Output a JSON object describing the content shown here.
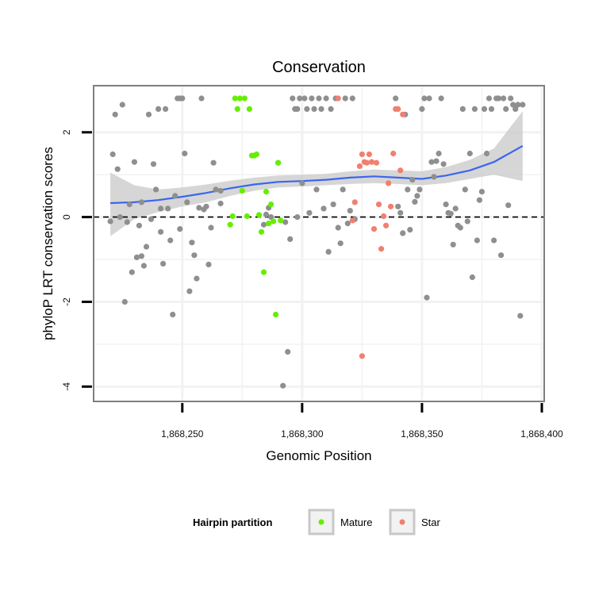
{
  "chart_data": {
    "type": "scatter",
    "title": "Conservation",
    "xlabel": "Genomic Position",
    "ylabel": "phyloP LRT conservation scores",
    "xlim": [
      1868213,
      1868401
    ],
    "ylim": [
      -4.35,
      3.1
    ],
    "x_ticks": [
      1868250,
      1868300,
      1868350,
      1868400
    ],
    "x_tick_labels": [
      "1,868,250",
      "1,868,300",
      "1,868,350",
      "1,868,400"
    ],
    "y_ticks": [
      -4,
      -2,
      0,
      2
    ],
    "y_tick_labels": [
      "-4",
      "-2",
      "0",
      "2"
    ],
    "reference_line": {
      "y": 0,
      "style": "dashed"
    },
    "grid": true,
    "colors": {
      "other": "#8f8f8f",
      "Mature": "#66ee00",
      "Star": "#f0806f",
      "smooth_line": "#3a66ee",
      "ribbon": "#c8c8c8",
      "panel_border": "#7f7f7f",
      "grid": "#f2f2f2"
    },
    "legend": {
      "title": "Hairpin partition",
      "placement": "bottom",
      "entries": [
        {
          "name": "Mature",
          "color": "#66ee00"
        },
        {
          "name": "Star",
          "color": "#f0806f"
        }
      ]
    },
    "series": [
      {
        "name": "other",
        "points": [
          [
            1868220,
            -0.1
          ],
          [
            1868221,
            1.48
          ],
          [
            1868222,
            2.42
          ],
          [
            1868223,
            1.13
          ],
          [
            1868224,
            0.0
          ],
          [
            1868225,
            2.65
          ],
          [
            1868226,
            -2.0
          ],
          [
            1868227,
            -0.12
          ],
          [
            1868228,
            0.3
          ],
          [
            1868229,
            -1.3
          ],
          [
            1868230,
            1.3
          ],
          [
            1868231,
            -0.95
          ],
          [
            1868232,
            -0.2
          ],
          [
            1868233,
            -0.92
          ],
          [
            1868233,
            0.35
          ],
          [
            1868234,
            -1.15
          ],
          [
            1868235,
            -0.7
          ],
          [
            1868236,
            2.42
          ],
          [
            1868237,
            -0.05
          ],
          [
            1868238,
            1.25
          ],
          [
            1868239,
            0.65
          ],
          [
            1868240,
            2.55
          ],
          [
            1868241,
            0.2
          ],
          [
            1868241,
            -0.35
          ],
          [
            1868242,
            -1.1
          ],
          [
            1868243,
            2.55
          ],
          [
            1868244,
            0.2
          ],
          [
            1868245,
            -0.55
          ],
          [
            1868246,
            -2.3
          ],
          [
            1868247,
            0.5
          ],
          [
            1868248,
            2.8
          ],
          [
            1868249,
            2.8
          ],
          [
            1868249,
            -0.28
          ],
          [
            1868250,
            2.8
          ],
          [
            1868251,
            1.5
          ],
          [
            1868252,
            0.35
          ],
          [
            1868253,
            -1.75
          ],
          [
            1868254,
            -0.6
          ],
          [
            1868255,
            -0.9
          ],
          [
            1868256,
            -1.45
          ],
          [
            1868257,
            0.22
          ],
          [
            1868258,
            2.8
          ],
          [
            1868259,
            0.18
          ],
          [
            1868260,
            0.25
          ],
          [
            1868261,
            -1.12
          ],
          [
            1868262,
            -0.25
          ],
          [
            1868263,
            1.28
          ],
          [
            1868264,
            0.65
          ],
          [
            1868266,
            0.32
          ],
          [
            1868266,
            0.62
          ],
          [
            1868284,
            -0.18
          ],
          [
            1868285,
            0.06
          ],
          [
            1868286,
            0.22
          ],
          [
            1868287,
            0.0
          ],
          [
            1868290,
            1.28
          ],
          [
            1868292,
            -3.98
          ],
          [
            1868293,
            -0.12
          ],
          [
            1868294,
            -3.18
          ],
          [
            1868295,
            -0.52
          ],
          [
            1868296,
            2.8
          ],
          [
            1868297,
            2.55
          ],
          [
            1868298,
            0.0
          ],
          [
            1868298,
            2.55
          ],
          [
            1868299,
            2.8
          ],
          [
            1868300,
            0.8
          ],
          [
            1868301,
            2.8
          ],
          [
            1868302,
            2.55
          ],
          [
            1868303,
            0.1
          ],
          [
            1868304,
            2.8
          ],
          [
            1868305,
            2.55
          ],
          [
            1868306,
            0.65
          ],
          [
            1868307,
            2.8
          ],
          [
            1868308,
            2.55
          ],
          [
            1868309,
            0.2
          ],
          [
            1868310,
            2.8
          ],
          [
            1868311,
            -0.82
          ],
          [
            1868312,
            2.55
          ],
          [
            1868313,
            0.3
          ],
          [
            1868314,
            2.8
          ],
          [
            1868315,
            -0.25
          ],
          [
            1868316,
            -0.62
          ],
          [
            1868317,
            0.65
          ],
          [
            1868318,
            2.8
          ],
          [
            1868319,
            -0.15
          ],
          [
            1868320,
            0.15
          ],
          [
            1868321,
            2.8
          ],
          [
            1868322,
            -0.05
          ],
          [
            1868339,
            2.8
          ],
          [
            1868340,
            0.25
          ],
          [
            1868341,
            0.1
          ],
          [
            1868342,
            -0.38
          ],
          [
            1868343,
            2.42
          ],
          [
            1868344,
            0.65
          ],
          [
            1868345,
            -0.3
          ],
          [
            1868346,
            0.88
          ],
          [
            1868347,
            0.36
          ],
          [
            1868348,
            0.5
          ],
          [
            1868349,
            0.65
          ],
          [
            1868350,
            2.55
          ],
          [
            1868351,
            2.8
          ],
          [
            1868352,
            -1.9
          ],
          [
            1868353,
            2.8
          ],
          [
            1868354,
            1.3
          ],
          [
            1868355,
            0.95
          ],
          [
            1868356,
            1.32
          ],
          [
            1868357,
            1.5
          ],
          [
            1868358,
            2.8
          ],
          [
            1868359,
            1.25
          ],
          [
            1868360,
            0.3
          ],
          [
            1868361,
            0.1
          ],
          [
            1868362,
            0.08
          ],
          [
            1868363,
            -0.65
          ],
          [
            1868364,
            0.2
          ],
          [
            1868365,
            -0.2
          ],
          [
            1868366,
            -0.25
          ],
          [
            1868367,
            2.55
          ],
          [
            1868368,
            0.65
          ],
          [
            1868369,
            -0.1
          ],
          [
            1868370,
            1.5
          ],
          [
            1868371,
            -1.42
          ],
          [
            1868372,
            2.55
          ],
          [
            1868373,
            -0.55
          ],
          [
            1868374,
            0.4
          ],
          [
            1868375,
            0.6
          ],
          [
            1868376,
            2.55
          ],
          [
            1868377,
            1.5
          ],
          [
            1868378,
            2.8
          ],
          [
            1868379,
            2.55
          ],
          [
            1868380,
            -0.55
          ],
          [
            1868381,
            2.8
          ],
          [
            1868382,
            2.8
          ],
          [
            1868383,
            -0.9
          ],
          [
            1868384,
            2.8
          ],
          [
            1868385,
            2.55
          ],
          [
            1868386,
            0.28
          ],
          [
            1868387,
            2.8
          ],
          [
            1868388,
            2.65
          ],
          [
            1868389,
            2.55
          ],
          [
            1868390,
            2.65
          ],
          [
            1868391,
            -2.33
          ],
          [
            1868392,
            2.65
          ]
        ]
      },
      {
        "name": "Mature",
        "points": [
          [
            1868270,
            -0.18
          ],
          [
            1868271,
            0.02
          ],
          [
            1868272,
            2.8
          ],
          [
            1868273,
            2.55
          ],
          [
            1868274,
            2.8
          ],
          [
            1868275,
            0.62
          ],
          [
            1868276,
            2.8
          ],
          [
            1868277,
            0.02
          ],
          [
            1868278,
            2.55
          ],
          [
            1868279,
            1.45
          ],
          [
            1868280,
            1.45
          ],
          [
            1868281,
            1.48
          ],
          [
            1868282,
            0.05
          ],
          [
            1868283,
            -0.35
          ],
          [
            1868284,
            -1.3
          ],
          [
            1868285,
            0.6
          ],
          [
            1868286,
            -0.15
          ],
          [
            1868287,
            0.3
          ],
          [
            1868288,
            -0.1
          ],
          [
            1868289,
            -2.3
          ],
          [
            1868290,
            1.28
          ],
          [
            1868291,
            -0.08
          ]
        ]
      },
      {
        "name": "Star",
        "points": [
          [
            1868315,
            2.8
          ],
          [
            1868321,
            -0.08
          ],
          [
            1868322,
            0.35
          ],
          [
            1868324,
            1.2
          ],
          [
            1868325,
            1.48
          ],
          [
            1868325,
            -3.28
          ],
          [
            1868326,
            1.3
          ],
          [
            1868327,
            1.28
          ],
          [
            1868328,
            1.48
          ],
          [
            1868329,
            1.3
          ],
          [
            1868330,
            -0.28
          ],
          [
            1868331,
            1.28
          ],
          [
            1868332,
            0.3
          ],
          [
            1868333,
            -0.75
          ],
          [
            1868334,
            0.02
          ],
          [
            1868335,
            -0.2
          ],
          [
            1868336,
            0.8
          ],
          [
            1868337,
            0.25
          ],
          [
            1868338,
            1.5
          ],
          [
            1868339,
            2.55
          ],
          [
            1868340,
            2.55
          ],
          [
            1868341,
            1.1
          ],
          [
            1868342,
            2.42
          ]
        ]
      }
    ],
    "smooth": {
      "x": [
        1868220,
        1868230,
        1868240,
        1868250,
        1868260,
        1868270,
        1868280,
        1868290,
        1868300,
        1868310,
        1868320,
        1868330,
        1868340,
        1868350,
        1868360,
        1868370,
        1868380,
        1868392
      ],
      "y": [
        0.33,
        0.35,
        0.4,
        0.48,
        0.57,
        0.68,
        0.77,
        0.83,
        0.85,
        0.88,
        0.93,
        0.96,
        0.93,
        0.9,
        0.98,
        1.1,
        1.3,
        1.68
      ],
      "lower": [
        -0.45,
        -0.05,
        0.12,
        0.25,
        0.35,
        0.5,
        0.62,
        0.7,
        0.72,
        0.75,
        0.78,
        0.8,
        0.78,
        0.75,
        0.8,
        0.9,
        1.0,
        0.85
      ],
      "upper": [
        1.05,
        0.75,
        0.65,
        0.7,
        0.77,
        0.86,
        0.93,
        0.98,
        1.0,
        1.02,
        1.08,
        1.12,
        1.1,
        1.08,
        1.18,
        1.35,
        1.62,
        2.5
      ]
    }
  }
}
